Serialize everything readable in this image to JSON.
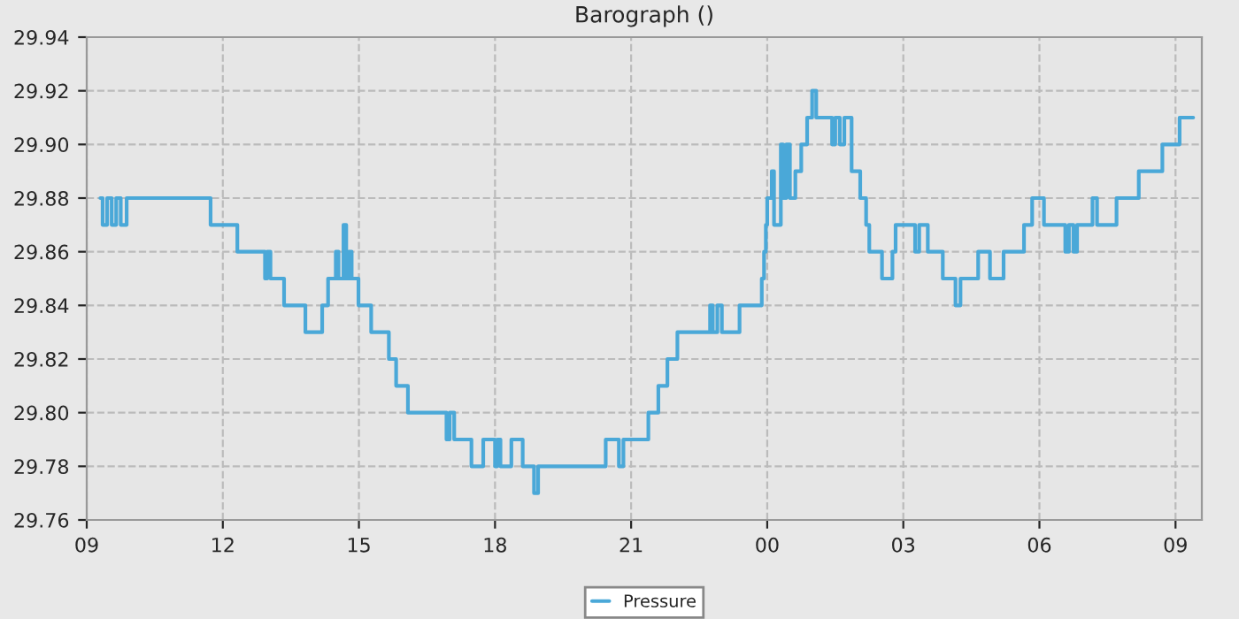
{
  "chart_data": {
    "type": "step",
    "title": "Barograph ()",
    "series": [
      {
        "name": "Pressure",
        "color": "#4aa8d8",
        "x": [
          9.3,
          9.35,
          9.45,
          9.55,
          9.65,
          9.75,
          9.88,
          11.73,
          12.32,
          12.93,
          12.98,
          13.05,
          13.35,
          13.82,
          14.19,
          14.32,
          14.49,
          14.55,
          14.66,
          14.72,
          14.78,
          14.84,
          14.92,
          14.99,
          15.27,
          15.66,
          15.82,
          16.08,
          16.93,
          17.0,
          17.1,
          17.25,
          17.48,
          17.74,
          18.0,
          18.05,
          18.12,
          18.36,
          18.61,
          18.86,
          18.95,
          19.3,
          20.44,
          20.73,
          20.83,
          21.38,
          21.6,
          21.8,
          22.02,
          22.74,
          22.8,
          22.9,
          23.0,
          23.09,
          23.39,
          23.88,
          23.93,
          23.97,
          24.0,
          24.1,
          24.15,
          24.3,
          24.35,
          24.42,
          24.5,
          24.62,
          24.75,
          24.88,
          24.99,
          25.08,
          25.43,
          25.5,
          25.6,
          25.7,
          25.86,
          26.05,
          26.18,
          26.25,
          26.53,
          26.76,
          26.83,
          27.26,
          27.35,
          27.54,
          27.87,
          27.97,
          28.15,
          28.26,
          28.65,
          28.91,
          29.21,
          29.66,
          29.84,
          30.1,
          30.57,
          30.65,
          30.75,
          30.83,
          31.17,
          31.27,
          31.7,
          32.19,
          32.71,
          33.09,
          33.39
        ],
        "values": [
          29.88,
          29.87,
          29.88,
          29.87,
          29.88,
          29.87,
          29.88,
          29.87,
          29.86,
          29.85,
          29.86,
          29.85,
          29.84,
          29.83,
          29.84,
          29.85,
          29.86,
          29.85,
          29.87,
          29.85,
          29.86,
          29.85,
          29.85,
          29.84,
          29.83,
          29.82,
          29.81,
          29.8,
          29.79,
          29.8,
          29.79,
          29.79,
          29.78,
          29.79,
          29.78,
          29.79,
          29.78,
          29.79,
          29.78,
          29.77,
          29.78,
          29.78,
          29.79,
          29.78,
          29.79,
          29.8,
          29.81,
          29.82,
          29.83,
          29.84,
          29.83,
          29.84,
          29.83,
          29.83,
          29.84,
          29.85,
          29.86,
          29.87,
          29.88,
          29.89,
          29.87,
          29.9,
          29.88,
          29.9,
          29.88,
          29.89,
          29.9,
          29.91,
          29.92,
          29.91,
          29.9,
          29.91,
          29.9,
          29.91,
          29.89,
          29.88,
          29.87,
          29.86,
          29.85,
          29.86,
          29.87,
          29.86,
          29.87,
          29.86,
          29.85,
          29.85,
          29.84,
          29.85,
          29.86,
          29.85,
          29.86,
          29.87,
          29.88,
          29.87,
          29.86,
          29.87,
          29.86,
          29.87,
          29.88,
          29.87,
          29.88,
          29.89,
          29.9,
          29.91,
          29.91
        ]
      }
    ],
    "xlim": [
      9,
      33.58
    ],
    "xticks": [
      {
        "value": 9,
        "label": "09"
      },
      {
        "value": 12,
        "label": "12"
      },
      {
        "value": 15,
        "label": "15"
      },
      {
        "value": 18,
        "label": "18"
      },
      {
        "value": 21,
        "label": "21"
      },
      {
        "value": 24,
        "label": "00"
      },
      {
        "value": 27,
        "label": "03"
      },
      {
        "value": 30,
        "label": "06"
      },
      {
        "value": 33,
        "label": "09"
      }
    ],
    "ylim": [
      29.76,
      29.94
    ],
    "yticks": [
      {
        "value": 29.76,
        "label": "29.76"
      },
      {
        "value": 29.78,
        "label": "29.78"
      },
      {
        "value": 29.8,
        "label": "29.80"
      },
      {
        "value": 29.82,
        "label": "29.82"
      },
      {
        "value": 29.84,
        "label": "29.84"
      },
      {
        "value": 29.86,
        "label": "29.86"
      },
      {
        "value": 29.88,
        "label": "29.88"
      },
      {
        "value": 29.9,
        "label": "29.90"
      },
      {
        "value": 29.92,
        "label": "29.92"
      },
      {
        "value": 29.94,
        "label": "29.94"
      }
    ],
    "grid": true,
    "legend": "bottom",
    "line_style": "solid"
  }
}
